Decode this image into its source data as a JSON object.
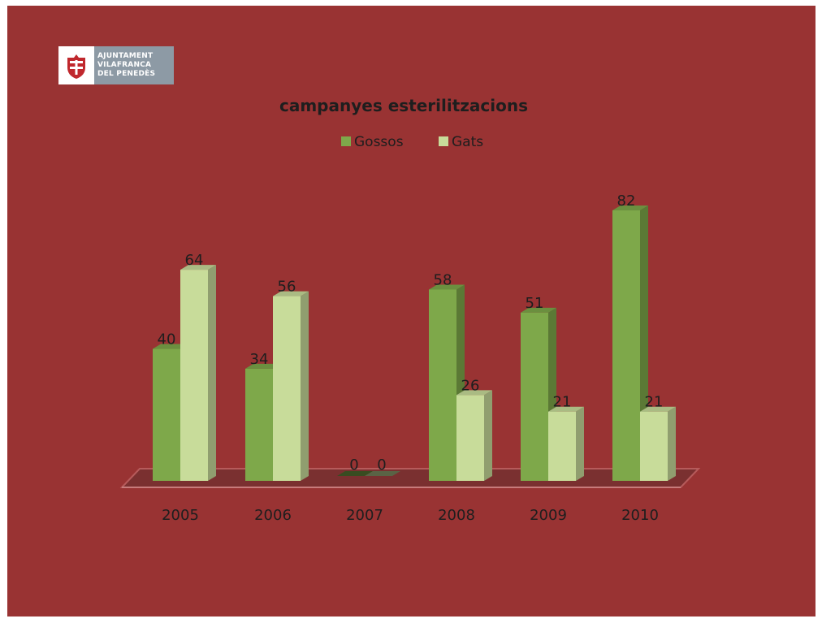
{
  "logo": {
    "lines": [
      "AJUNTAMENT",
      "VILAFRANCA",
      "DEL PENEDÈS"
    ]
  },
  "colors": {
    "background": "#993333",
    "gossos": "#7ea84a",
    "gats": "#c8dc9a"
  },
  "chart_data": {
    "type": "bar",
    "title": "campanyes esterilitzacions",
    "categories": [
      "2005",
      "2006",
      "2007",
      "2008",
      "2009",
      "2010"
    ],
    "series": [
      {
        "name": "Gossos",
        "values": [
          40,
          34,
          0,
          58,
          51,
          82
        ]
      },
      {
        "name": "Gats",
        "values": [
          64,
          56,
          0,
          26,
          21,
          21
        ]
      }
    ],
    "ylim": [
      0,
      90
    ],
    "grid": false,
    "legend": "top",
    "data_labels": true
  }
}
